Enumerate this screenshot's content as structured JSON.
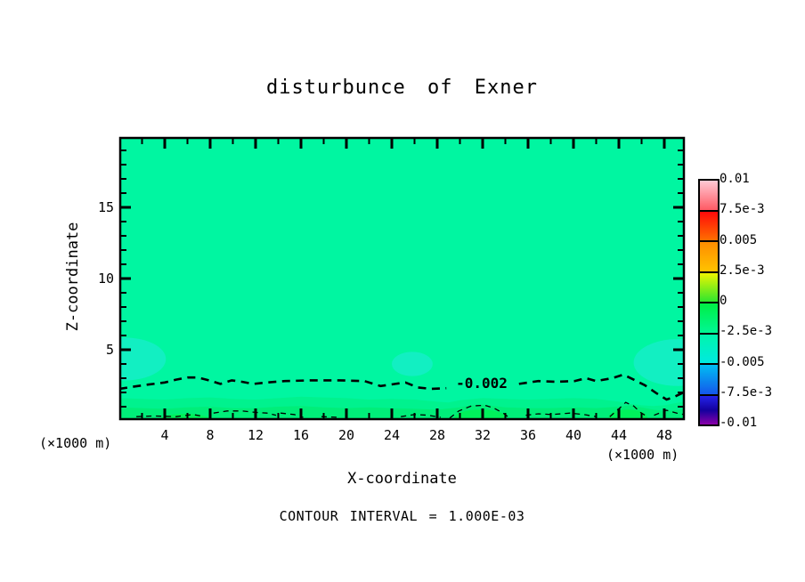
{
  "title": "disturbunce of Exner",
  "axes": {
    "x": {
      "label": "X-coordinate",
      "unit": "(×1000 m)"
    },
    "z": {
      "label": "Z-coordinate",
      "unit": "(×1000 m)"
    }
  },
  "contour_label": "-0.002",
  "footer": {
    "contour_interval_text": "CONTOUR INTERVAL = 1.000E-03"
  },
  "colorbar": {
    "tick_labels": [
      "0.01",
      "7.5e-3",
      "0.005",
      "2.5e-3",
      "0",
      "-2.5e-3",
      "-0.005",
      "-7.5e-3",
      "-0.01"
    ],
    "segments": [
      {
        "from": "#FFC9D4",
        "to": "#FF5A64"
      },
      {
        "from": "#FF0A0A",
        "to": "#FF6E00"
      },
      {
        "from": "#FF8C00",
        "to": "#FFC300"
      },
      {
        "from": "#EEF500",
        "to": "#2EE62E"
      },
      {
        "from": "#00EE44",
        "to": "#00F795"
      },
      {
        "from": "#00F6AC",
        "to": "#00E9E0"
      },
      {
        "from": "#00BEF2",
        "to": "#1457EC"
      },
      {
        "from": "#2424EA",
        "via": "#14009E",
        "to": "#8A00A8"
      }
    ]
  },
  "chart_data": {
    "type": "contour",
    "title": "disturbunce of Exner",
    "xlabel": "X-coordinate",
    "x_unit": "(×1000 m)",
    "xlim": [
      0,
      49.7
    ],
    "zlabel": "Z-coordinate",
    "z_unit": "(×1000 m)",
    "zlim": [
      0,
      19.9
    ],
    "x_ticks_major": [
      4,
      8,
      12,
      16,
      20,
      24,
      28,
      32,
      36,
      40,
      44,
      48
    ],
    "x_tick_minor_step": 2,
    "z_ticks_major": [
      5,
      10,
      15
    ],
    "z_tick_minor_step": 1,
    "contour_interval": "1.000E-03",
    "background_level_approx": -0.0015,
    "colors": {
      "background": "#00F6A1",
      "band_mid": "#00F28E",
      "band_low": "#00EE79",
      "band_lowest": "#00F25B",
      "cyan_patch": "#12EFC2",
      "contour": "#000000"
    },
    "labeled_contours": [
      {
        "level": -0.002,
        "label": "-0.002",
        "style": "dashed",
        "label_position_x": 33.3,
        "label_position_z": 2.6,
        "segments": [
          [
            [
              0,
              2.25
            ],
            [
              1.2,
              2.4
            ],
            [
              2.5,
              2.55
            ],
            [
              4,
              2.7
            ],
            [
              5,
              2.9
            ],
            [
              6,
              3.05
            ],
            [
              6.9,
              3.05
            ],
            [
              7.9,
              2.85
            ],
            [
              8.9,
              2.6
            ],
            [
              9.9,
              2.85
            ],
            [
              10.8,
              2.75
            ],
            [
              11.8,
              2.6
            ],
            [
              13,
              2.7
            ],
            [
              14.6,
              2.8
            ],
            [
              16.9,
              2.85
            ],
            [
              19.3,
              2.85
            ],
            [
              21.6,
              2.8
            ],
            [
              23,
              2.45
            ],
            [
              24.3,
              2.6
            ],
            [
              25.2,
              2.7
            ],
            [
              26.3,
              2.35
            ],
            [
              27.5,
              2.25
            ],
            [
              28.8,
              2.3
            ]
          ],
          [
            [
              35.2,
              2.6
            ],
            [
              36.9,
              2.8
            ],
            [
              38.5,
              2.75
            ],
            [
              40.1,
              2.8
            ],
            [
              41.1,
              3.0
            ],
            [
              42,
              2.8
            ],
            [
              43.4,
              3.0
            ],
            [
              44.4,
              3.25
            ],
            [
              45.3,
              2.9
            ],
            [
              46.3,
              2.5
            ],
            [
              47.3,
              1.95
            ],
            [
              48.2,
              1.5
            ],
            [
              48.9,
              1.7
            ],
            [
              49.7,
              2.0
            ]
          ]
        ]
      }
    ],
    "minor_contours": {
      "level": -0.003,
      "style": "thin-dashed",
      "segments": [
        [
          [
            1.5,
            0.3
          ],
          [
            3,
            0.35
          ],
          [
            5,
            0.3
          ],
          [
            6.5,
            0.45
          ],
          [
            7.5,
            0.3
          ]
        ],
        [
          [
            8.3,
            0.55
          ],
          [
            9.5,
            0.7
          ],
          [
            10.8,
            0.7
          ],
          [
            12,
            0.6
          ],
          [
            13,
            0.55
          ],
          [
            13.8,
            0.4
          ]
        ],
        [
          [
            14.2,
            0.55
          ],
          [
            15.4,
            0.45
          ],
          [
            16.2,
            0.25
          ]
        ],
        [
          [
            17.8,
            0.3
          ],
          [
            19.3,
            0.25
          ]
        ],
        [
          [
            24.8,
            0.3
          ],
          [
            26,
            0.45
          ],
          [
            27.2,
            0.4
          ],
          [
            28.3,
            0.25
          ]
        ],
        [
          [
            29.1,
            0.2
          ],
          [
            29.9,
            0.7
          ],
          [
            31,
            1.05
          ],
          [
            32.2,
            1.1
          ],
          [
            33,
            0.9
          ],
          [
            33.8,
            0.55
          ],
          [
            34.4,
            0.2
          ]
        ],
        [
          [
            35.8,
            0.4
          ],
          [
            36.9,
            0.5
          ],
          [
            38.1,
            0.45
          ],
          [
            39.7,
            0.55
          ],
          [
            40.9,
            0.45
          ],
          [
            42,
            0.3
          ]
        ],
        [
          [
            43.2,
            0.3
          ],
          [
            44,
            0.85
          ],
          [
            44.6,
            1.3
          ],
          [
            45.3,
            1.05
          ],
          [
            45.9,
            0.6
          ],
          [
            46.6,
            0.25
          ]
        ],
        [
          [
            47.1,
            0.4
          ],
          [
            48.2,
            0.75
          ],
          [
            49.1,
            0.55
          ],
          [
            49.7,
            0.45
          ]
        ]
      ]
    },
    "shading_bands": [
      {
        "color_key": "band_mid",
        "top_profile": [
          [
            0,
            1.6
          ],
          [
            2,
            1.55
          ],
          [
            4,
            1.5
          ],
          [
            6,
            1.6
          ],
          [
            8,
            1.65
          ],
          [
            10,
            1.55
          ],
          [
            12,
            1.5
          ],
          [
            14,
            1.6
          ],
          [
            16,
            1.7
          ],
          [
            18,
            1.65
          ],
          [
            20,
            1.6
          ],
          [
            22,
            1.5
          ],
          [
            24,
            1.55
          ],
          [
            26,
            1.5
          ],
          [
            28,
            1.35
          ],
          [
            29,
            1.3
          ],
          [
            30,
            1.45
          ],
          [
            32,
            1.6
          ],
          [
            34,
            1.55
          ],
          [
            36,
            1.5
          ],
          [
            38,
            1.55
          ],
          [
            40,
            1.6
          ],
          [
            42,
            1.55
          ],
          [
            43,
            1.45
          ],
          [
            44,
            1.35
          ],
          [
            45,
            1.2
          ],
          [
            46,
            1.1
          ],
          [
            47,
            1.05
          ],
          [
            48,
            1.1
          ],
          [
            49,
            1.25
          ],
          [
            49.7,
            1.35
          ]
        ]
      },
      {
        "color_key": "band_low",
        "top_profile": [
          [
            0,
            0.95
          ],
          [
            2,
            0.9
          ],
          [
            4,
            0.85
          ],
          [
            6,
            0.95
          ],
          [
            8,
            1.0
          ],
          [
            10,
            0.9
          ],
          [
            12,
            0.9
          ],
          [
            14,
            1.0
          ],
          [
            16,
            1.05
          ],
          [
            18,
            0.95
          ],
          [
            20,
            0.9
          ],
          [
            22,
            0.95
          ],
          [
            24,
            0.9
          ],
          [
            26,
            0.85
          ],
          [
            28,
            0.8
          ],
          [
            30,
            0.95
          ],
          [
            31,
            1.1
          ],
          [
            32,
            1.15
          ],
          [
            33,
            1.05
          ],
          [
            34,
            0.95
          ],
          [
            36,
            0.9
          ],
          [
            38,
            0.9
          ],
          [
            40,
            0.95
          ],
          [
            42,
            0.9
          ],
          [
            44,
            1.0
          ],
          [
            45,
            1.1
          ],
          [
            46,
            0.95
          ],
          [
            47,
            0.8
          ],
          [
            48,
            0.7
          ],
          [
            49,
            0.75
          ],
          [
            49.7,
            0.8
          ]
        ]
      }
    ],
    "bright_patches": [
      {
        "cx": 5.8,
        "cz": 0.1,
        "rx": 2.2,
        "rz": 0.4
      },
      {
        "cx": 31.8,
        "cz": 0.2,
        "rx": 2.3,
        "rz": 0.6
      },
      {
        "cx": 44.8,
        "cz": 0.25,
        "rx": 1.7,
        "rz": 0.55
      }
    ],
    "cyan_patches": [
      {
        "cx": 0.5,
        "cz": 4.35,
        "rx": 3.6,
        "rz": 1.5
      },
      {
        "cx": 25.8,
        "cz": 4.0,
        "rx": 1.8,
        "rz": 0.85
      },
      {
        "cx": 49.2,
        "cz": 4.1,
        "rx": 3.9,
        "rz": 1.65
      }
    ],
    "colorbar_tick_labels": [
      "0.01",
      "7.5e-3",
      "0.005",
      "2.5e-3",
      "0",
      "-2.5e-3",
      "-0.005",
      "-7.5e-3",
      "-0.01"
    ]
  }
}
